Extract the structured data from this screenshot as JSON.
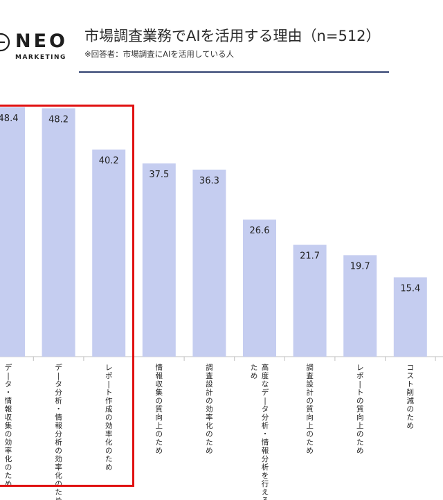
{
  "header": {
    "logo_text": "NEO",
    "logo_sub": "MARKETING",
    "title": "市場調査業務でAIを活用する理由（n=512）",
    "note": "※回答者：市場調査にAIを活用している人"
  },
  "colors": {
    "bar": "#c5cdf0",
    "highlight": "#e01010",
    "rule": "#2e3f6e"
  },
  "chart_data": {
    "type": "bar",
    "unit": "%",
    "categories": [
      "データ・情報収集の効率化のため",
      "データ分析・情報分析の効率化のため",
      "レポート作成の効率化のため",
      "情報収集の質向上のため",
      "調査設計の効率化のため",
      "高度なデータ分析・情報分析を行えるため",
      "調査設計の質向上のため",
      "レポートの質向上のため",
      "コスト削減のため"
    ],
    "values": [
      48.4,
      48.2,
      40.2,
      37.5,
      36.3,
      26.6,
      21.7,
      19.7,
      15.4
    ],
    "value_labels": [
      "48.4",
      "48.2",
      "40.2",
      "37.5",
      "36.3",
      "26.6",
      "21.7",
      "19.7",
      "15.4"
    ],
    "ylim": [
      0,
      50
    ],
    "highlighted_categories": 3
  }
}
